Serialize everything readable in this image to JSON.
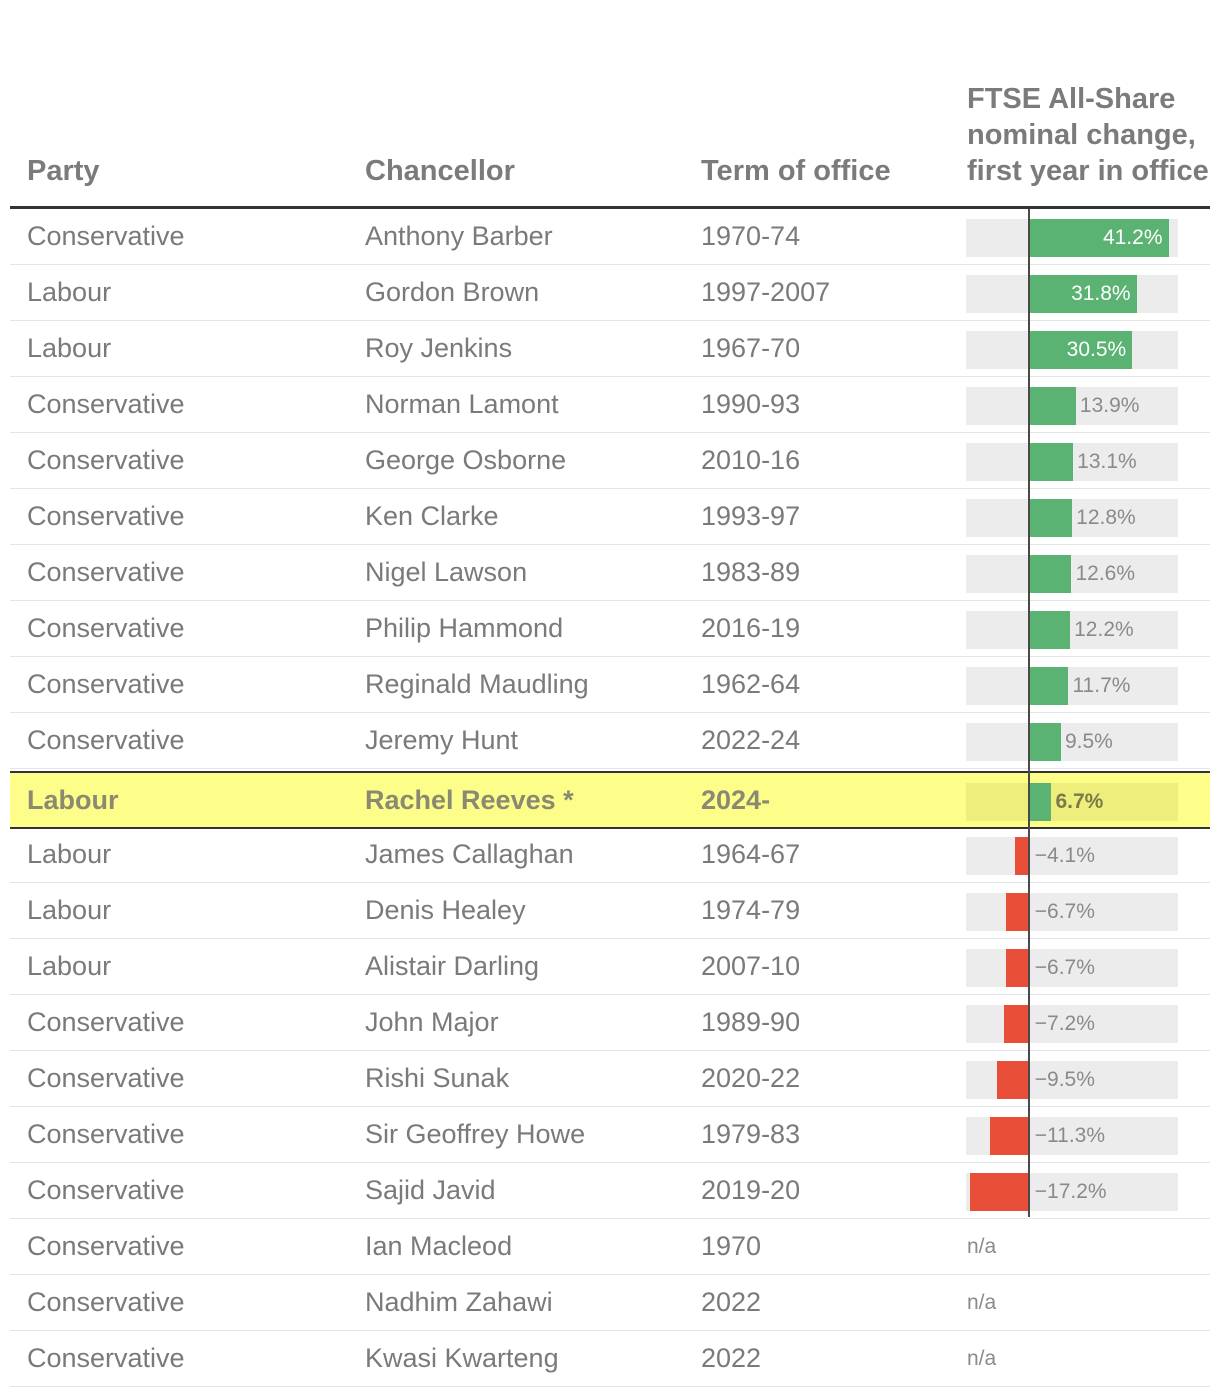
{
  "headers": {
    "party": "Party",
    "chancellor": "Chancellor",
    "term": "Term of office",
    "change": "FTSE All-Share nominal change, first year in office"
  },
  "colors": {
    "positive": "#5ab372",
    "negative": "#e84e38",
    "highlight": "#fdfd8a",
    "track": "#ececec"
  },
  "chart_data": {
    "type": "table",
    "title": "",
    "columns": [
      "Party",
      "Chancellor",
      "Term of office",
      "FTSE All-Share nominal change, first year in office"
    ],
    "highlighted_row": "Rachel Reeves *",
    "x_range": [
      -18.5,
      44
    ],
    "rows": [
      {
        "party": "Conservative",
        "chancellor": "Anthony Barber",
        "term": "1970-74",
        "value": 41.2,
        "label": "41.2%"
      },
      {
        "party": "Labour",
        "chancellor": "Gordon Brown",
        "term": "1997-2007",
        "value": 31.8,
        "label": "31.8%"
      },
      {
        "party": "Labour",
        "chancellor": "Roy Jenkins",
        "term": "1967-70",
        "value": 30.5,
        "label": "30.5%"
      },
      {
        "party": "Conservative",
        "chancellor": "Norman Lamont",
        "term": "1990-93",
        "value": 13.9,
        "label": "13.9%"
      },
      {
        "party": "Conservative",
        "chancellor": "George Osborne",
        "term": "2010-16",
        "value": 13.1,
        "label": "13.1%"
      },
      {
        "party": "Conservative",
        "chancellor": "Ken Clarke",
        "term": "1993-97",
        "value": 12.8,
        "label": "12.8%"
      },
      {
        "party": "Conservative",
        "chancellor": "Nigel Lawson",
        "term": "1983-89",
        "value": 12.6,
        "label": "12.6%"
      },
      {
        "party": "Conservative",
        "chancellor": "Philip Hammond",
        "term": "2016-19",
        "value": 12.2,
        "label": "12.2%"
      },
      {
        "party": "Conservative",
        "chancellor": "Reginald Maudling",
        "term": "1962-64",
        "value": 11.7,
        "label": "11.7%"
      },
      {
        "party": "Conservative",
        "chancellor": "Jeremy Hunt",
        "term": "2022-24",
        "value": 9.5,
        "label": "9.5%"
      },
      {
        "party": "Labour",
        "chancellor": "Rachel Reeves *",
        "term": "2024-",
        "value": 6.7,
        "label": "6.7%",
        "highlight": true
      },
      {
        "party": "Labour",
        "chancellor": "James Callaghan",
        "term": "1964-67",
        "value": -4.1,
        "label": "−4.1%"
      },
      {
        "party": "Labour",
        "chancellor": "Denis Healey",
        "term": "1974-79",
        "value": -6.7,
        "label": "−6.7%"
      },
      {
        "party": "Labour",
        "chancellor": "Alistair Darling",
        "term": "2007-10",
        "value": -6.7,
        "label": "−6.7%"
      },
      {
        "party": "Conservative",
        "chancellor": "John Major",
        "term": "1989-90",
        "value": -7.2,
        "label": "−7.2%"
      },
      {
        "party": "Conservative",
        "chancellor": "Rishi Sunak",
        "term": "2020-22",
        "value": -9.5,
        "label": "−9.5%"
      },
      {
        "party": "Conservative",
        "chancellor": "Sir Geoffrey Howe",
        "term": "1979-83",
        "value": -11.3,
        "label": "−11.3%"
      },
      {
        "party": "Conservative",
        "chancellor": "Sajid Javid",
        "term": "2019-20",
        "value": -17.2,
        "label": "−17.2%"
      },
      {
        "party": "Conservative",
        "chancellor": "Ian Macleod",
        "term": "1970",
        "value": null,
        "label": "n/a"
      },
      {
        "party": "Conservative",
        "chancellor": "Nadhim Zahawi",
        "term": "2022",
        "value": null,
        "label": "n/a"
      },
      {
        "party": "Conservative",
        "chancellor": "Kwasi Kwarteng",
        "term": "2022",
        "value": null,
        "label": "n/a"
      }
    ]
  }
}
